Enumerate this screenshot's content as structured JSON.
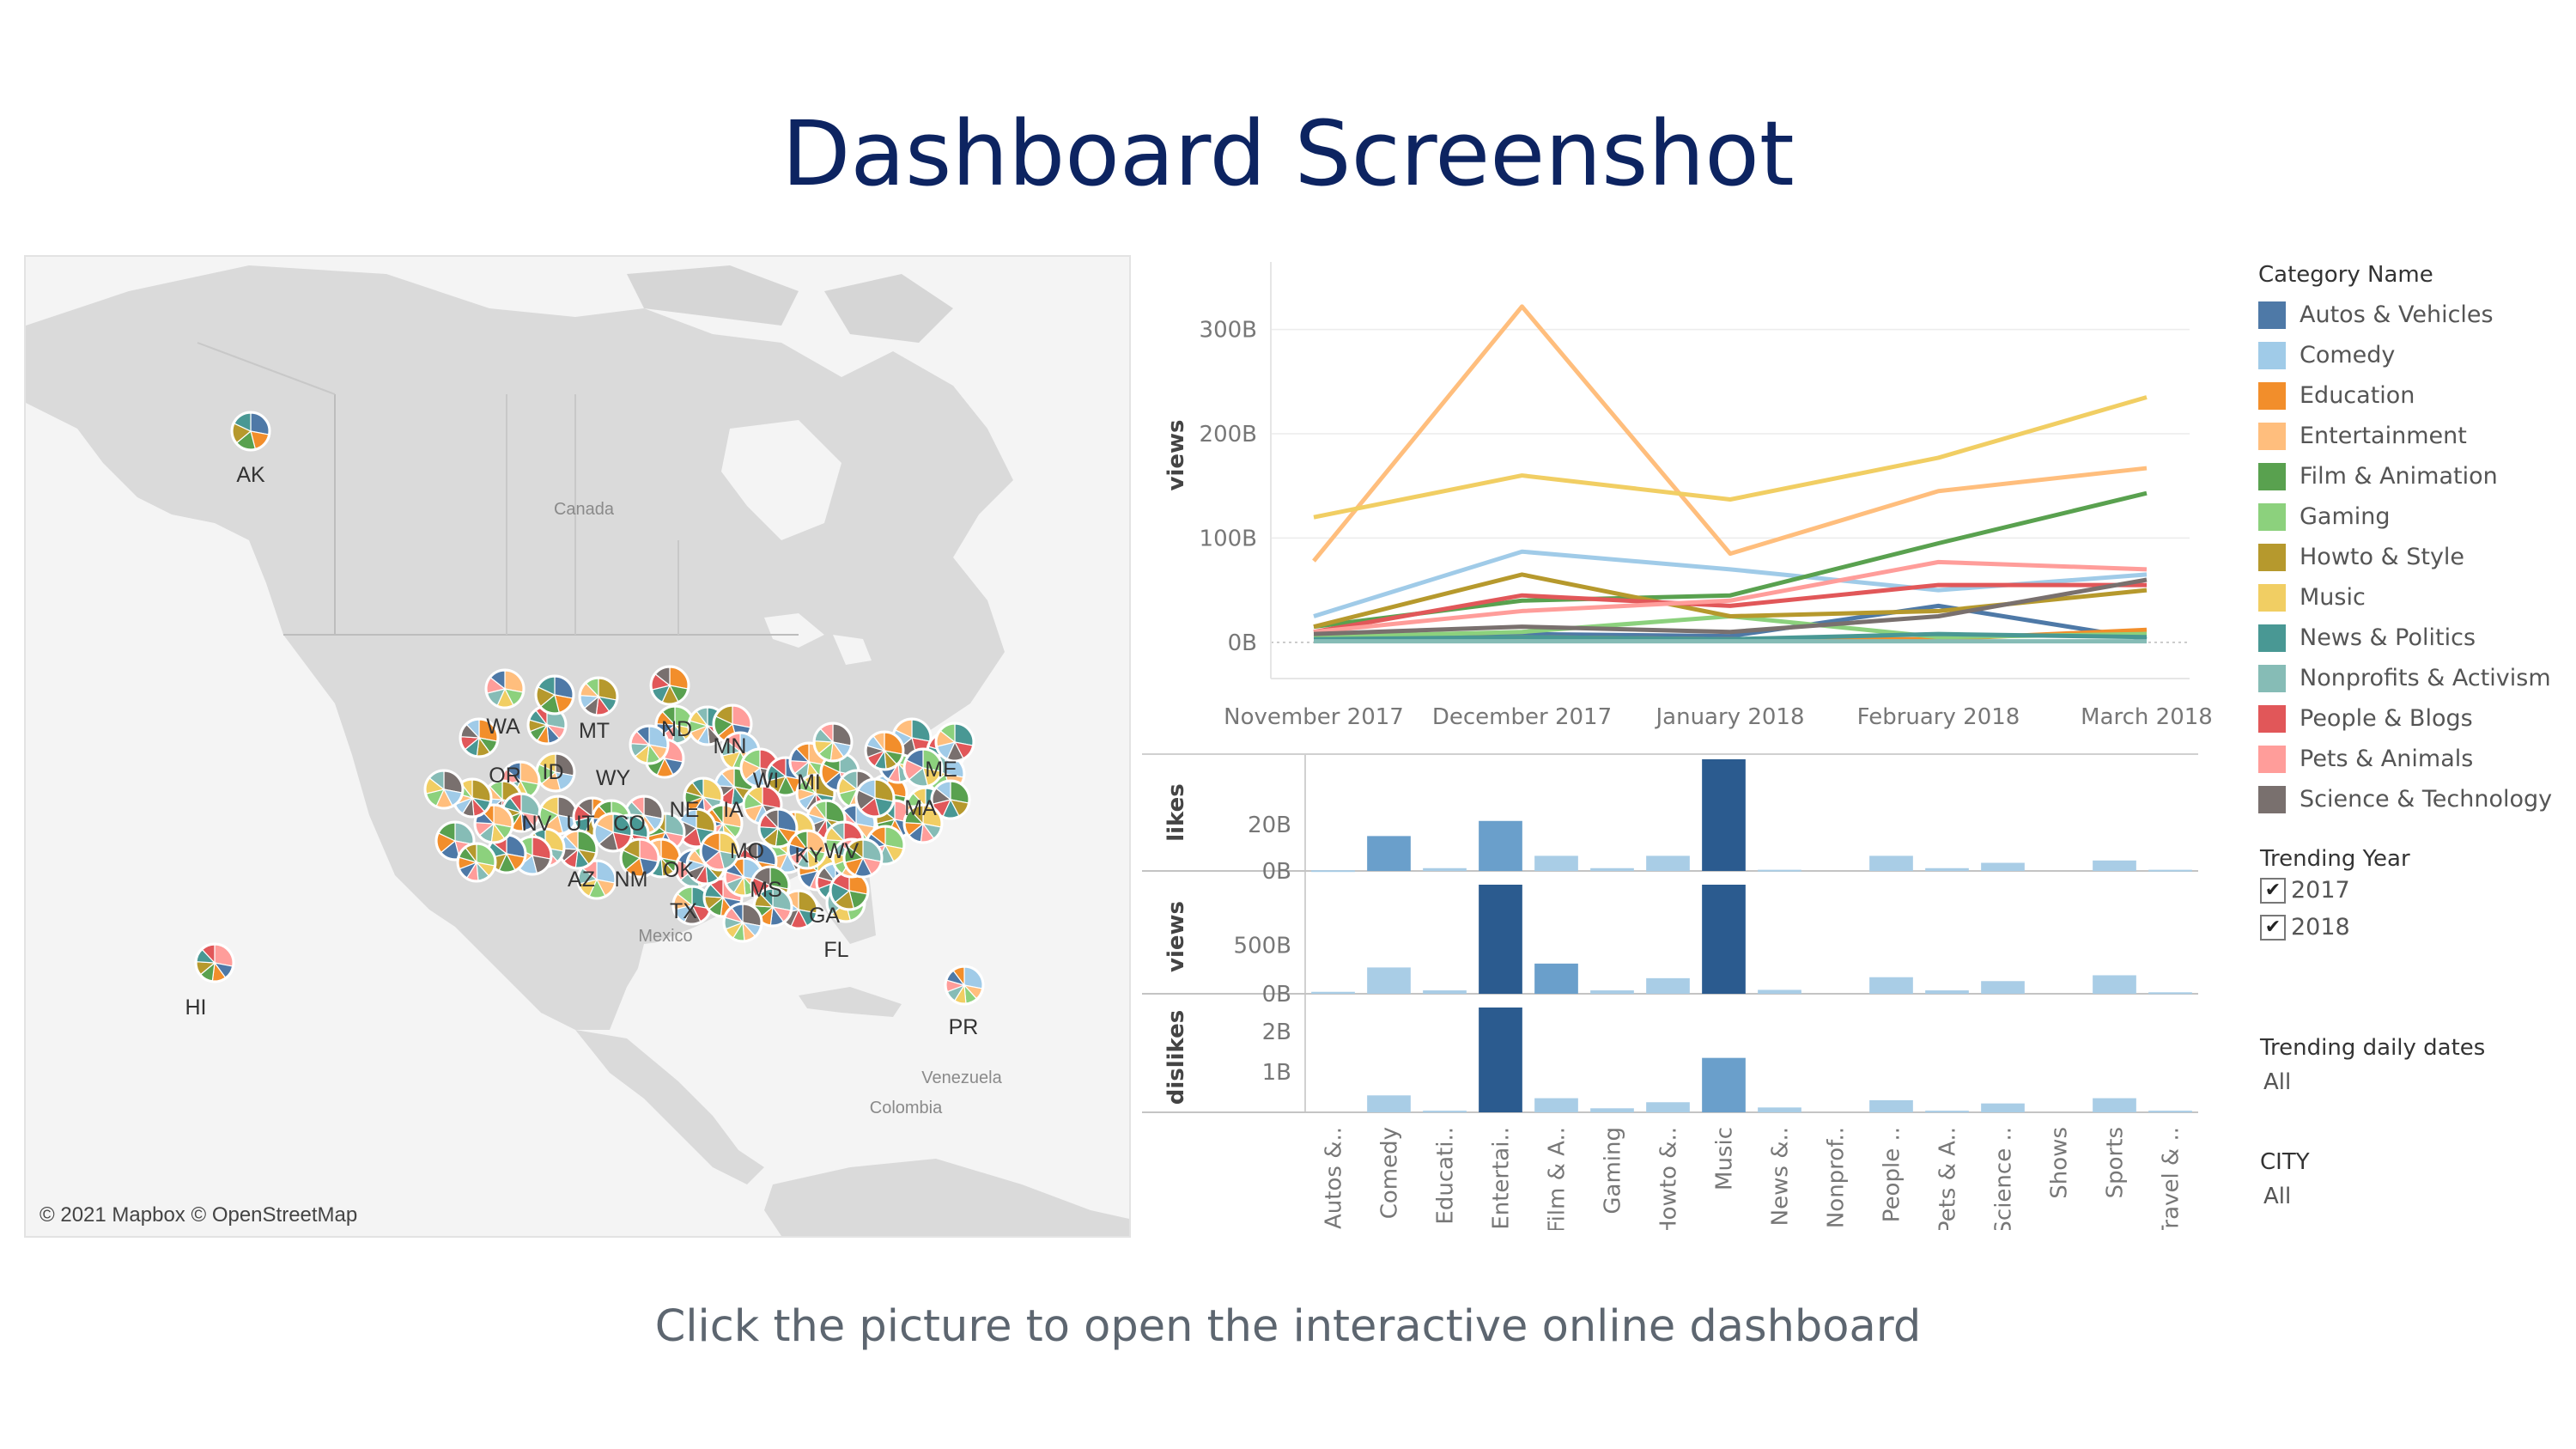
{
  "title": "Dashboard Screenshot",
  "caption": "Click the picture to open the interactive online dashboard",
  "map": {
    "credit": "© 2021 Mapbox © OpenStreetMap",
    "places": [
      "Canada",
      "Mexico",
      "Venezuela",
      "Colombia"
    ],
    "state_labels": [
      "AK",
      "WA",
      "MT",
      "ND",
      "MN",
      "OR",
      "ID",
      "WY",
      "WI",
      "MI",
      "ME",
      "NV",
      "UT",
      "CO",
      "NE",
      "IA",
      "MA",
      "AZ",
      "NM",
      "MO",
      "KY",
      "WV",
      "OK",
      "TX",
      "MS",
      "GA",
      "FL",
      "HI",
      "PR"
    ]
  },
  "legend": {
    "title": "Category Name",
    "items": [
      {
        "label": "Autos & Vehicles",
        "color": "#4e79a7"
      },
      {
        "label": "Comedy",
        "color": "#a0cbe8"
      },
      {
        "label": "Education",
        "color": "#f28e2b"
      },
      {
        "label": "Entertainment",
        "color": "#ffbe7d"
      },
      {
        "label": "Film & Animation",
        "color": "#59a14f"
      },
      {
        "label": "Gaming",
        "color": "#8cd17d"
      },
      {
        "label": "Howto & Style",
        "color": "#b6992d"
      },
      {
        "label": "Music",
        "color": "#f1ce63"
      },
      {
        "label": "News & Politics",
        "color": "#499894"
      },
      {
        "label": "Nonprofits & Activism",
        "color": "#86bcb6"
      },
      {
        "label": "People & Blogs",
        "color": "#e15759"
      },
      {
        "label": "Pets & Animals",
        "color": "#ff9d9a"
      },
      {
        "label": "Science & Technology",
        "color": "#79706e"
      }
    ]
  },
  "filters": {
    "trending_year": {
      "title": "Trending Year",
      "options": [
        {
          "label": "2017",
          "checked": true
        },
        {
          "label": "2018",
          "checked": true
        }
      ]
    },
    "daily_dates": {
      "title": "Trending daily dates",
      "value": "All"
    },
    "city": {
      "title": "CITY",
      "value": "All"
    }
  },
  "chart_data": [
    {
      "type": "line",
      "x": [
        "November 2017",
        "December 2017",
        "January 2018",
        "February 2018",
        "March 2018"
      ],
      "ylabel": "views",
      "yticks": [
        "0B",
        "100B",
        "200B",
        "300B"
      ],
      "ylim": [
        -10,
        340
      ],
      "grid": true,
      "series": [
        {
          "name": "Autos & Vehicles",
          "color": "#4e79a7",
          "values": [
            5,
            8,
            6,
            35,
            3
          ]
        },
        {
          "name": "Comedy",
          "color": "#a0cbe8",
          "values": [
            25,
            87,
            70,
            50,
            65
          ]
        },
        {
          "name": "Education",
          "color": "#f28e2b",
          "values": [
            3,
            5,
            3,
            3,
            12
          ]
        },
        {
          "name": "Entertainment",
          "color": "#ffbe7d",
          "values": [
            78,
            322,
            85,
            145,
            167
          ]
        },
        {
          "name": "Film & Animation",
          "color": "#59a14f",
          "values": [
            15,
            40,
            45,
            95,
            143
          ]
        },
        {
          "name": "Gaming",
          "color": "#8cd17d",
          "values": [
            5,
            10,
            25,
            5,
            8
          ]
        },
        {
          "name": "Howto & Style",
          "color": "#b6992d",
          "values": [
            15,
            65,
            25,
            30,
            50
          ]
        },
        {
          "name": "Music",
          "color": "#f1ce63",
          "values": [
            120,
            160,
            137,
            177,
            235
          ]
        },
        {
          "name": "News & Politics",
          "color": "#499894",
          "values": [
            3,
            5,
            3,
            8,
            5
          ]
        },
        {
          "name": "Nonprofits & Activism",
          "color": "#86bcb6",
          "values": [
            1,
            1,
            1,
            1,
            1
          ]
        },
        {
          "name": "People & Blogs",
          "color": "#e15759",
          "values": [
            10,
            45,
            35,
            55,
            55
          ]
        },
        {
          "name": "Pets & Animals",
          "color": "#ff9d9a",
          "values": [
            10,
            30,
            40,
            77,
            70
          ]
        },
        {
          "name": "Science & Technology",
          "color": "#79706e",
          "values": [
            8,
            15,
            10,
            25,
            60
          ]
        }
      ]
    },
    {
      "type": "bar",
      "categories": [
        "Autos &..",
        "Comedy",
        "Educati..",
        "Entertai..",
        "Film & A..",
        "Gaming",
        "Howto &..",
        "Music",
        "News &..",
        "Nonprof..",
        "People ..",
        "Pets & A..",
        "Science ..",
        "Shows",
        "Sports",
        "Travel & .."
      ],
      "panels": [
        {
          "ylabel": "likes",
          "yticks": [
            "0B",
            "20B"
          ],
          "values": [
            0.3,
            15,
            1.2,
            21.5,
            6.5,
            1.2,
            6.5,
            48,
            0.5,
            0,
            6.5,
            1.2,
            3.5,
            0,
            4.5,
            0.5
          ]
        },
        {
          "ylabel": "views",
          "yticks": [
            "0B",
            "500B"
          ],
          "values": [
            20,
            270,
            35,
            1120,
            310,
            35,
            160,
            1120,
            40,
            0,
            170,
            35,
            130,
            0,
            190,
            15
          ]
        },
        {
          "ylabel": "dislikes",
          "yticks": [
            "1B",
            "2B"
          ],
          "values": [
            0,
            0.42,
            0.04,
            2.6,
            0.35,
            0.1,
            0.25,
            1.35,
            0.12,
            0,
            0.3,
            0.04,
            0.22,
            0,
            0.35,
            0.04
          ]
        }
      ]
    }
  ]
}
